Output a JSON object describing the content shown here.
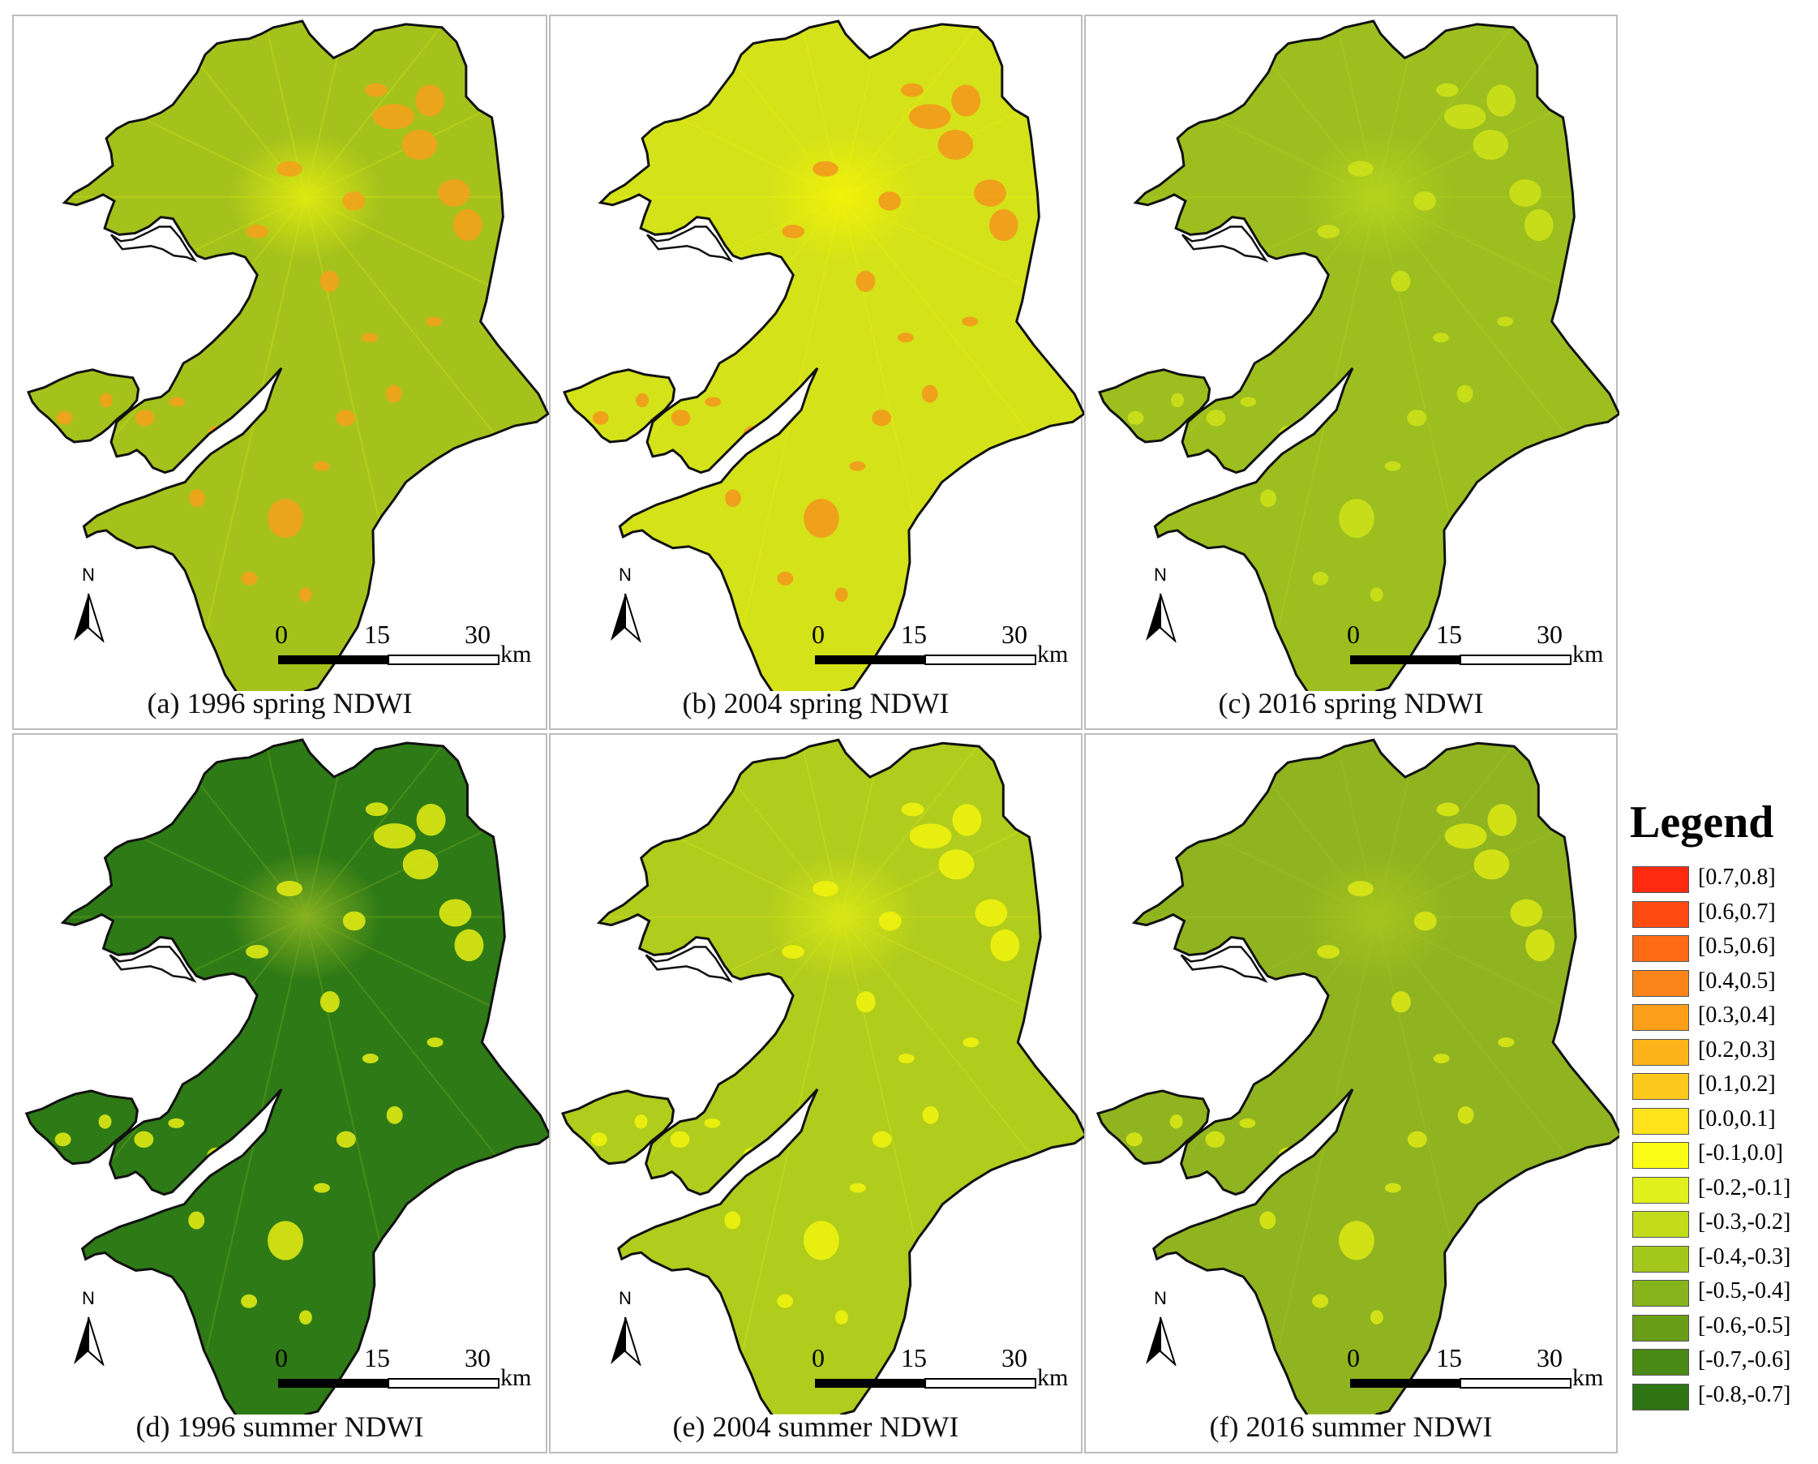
{
  "panels": [
    {
      "caption": "(a) 1996 spring NDWI",
      "base": "#a5c21c",
      "urban": "#dde812",
      "patch_color": "#f2a21c",
      "scale_ticks": [
        "0",
        "15",
        "30"
      ],
      "unit": "km",
      "north": "N"
    },
    {
      "caption": "(b) 2004 spring NDWI",
      "base": "#d4e21a",
      "urban": "#f1f109",
      "patch_color": "#f29a1c",
      "scale_ticks": [
        "0",
        "15",
        "30"
      ],
      "unit": "km",
      "north": "N"
    },
    {
      "caption": "(c) 2016 spring NDWI",
      "base": "#9cbf1f",
      "urban": "#b6d21c",
      "patch_color": "#cde01a",
      "scale_ticks": [
        "0",
        "15",
        "30"
      ],
      "unit": "km",
      "north": "N"
    },
    {
      "caption": "(d) 1996 summer NDWI",
      "base": "#2e7a16",
      "urban": "#86b120",
      "patch_color": "#dee814",
      "scale_ticks": [
        "0",
        "15",
        "30"
      ],
      "unit": "km",
      "north": "N"
    },
    {
      "caption": "(e) 2004 summer NDWI",
      "base": "#b0cc1d",
      "urban": "#d8e617",
      "patch_color": "#eef20e",
      "scale_ticks": [
        "0",
        "15",
        "30"
      ],
      "unit": "km",
      "north": "N"
    },
    {
      "caption": "(f) 2016 summer NDWI",
      "base": "#8fb420",
      "urban": "#a6c41e",
      "patch_color": "#d8e615",
      "scale_ticks": [
        "0",
        "15",
        "30"
      ],
      "unit": "km",
      "north": "N"
    }
  ],
  "legend": {
    "title": "Legend",
    "items": [
      {
        "label": "[0.7,0.8]",
        "color": "#ff2a10"
      },
      {
        "label": "[0.6,0.7]",
        "color": "#ff4a12"
      },
      {
        "label": "[0.5,0.6]",
        "color": "#ff6a14"
      },
      {
        "label": "[0.4,0.5]",
        "color": "#fb8518"
      },
      {
        "label": "[0.3,0.4]",
        "color": "#fca01a"
      },
      {
        "label": "[0.2,0.3]",
        "color": "#fdb41a"
      },
      {
        "label": "[0.1,0.2]",
        "color": "#fec91c"
      },
      {
        "label": "[0.0,0.1]",
        "color": "#fee21c"
      },
      {
        "label": "[-0.1,0.0]",
        "color": "#fafc16"
      },
      {
        "label": "[-0.2,-0.1]",
        "color": "#dff01c"
      },
      {
        "label": "[-0.3,-0.2]",
        "color": "#c2dc1c"
      },
      {
        "label": "[-0.4,-0.3]",
        "color": "#a3c81c"
      },
      {
        "label": "[-0.5,-0.4]",
        "color": "#86b41a"
      },
      {
        "label": "[-0.6,-0.5]",
        "color": "#6a9e18"
      },
      {
        "label": "[-0.7,-0.6]",
        "color": "#4c8a16"
      },
      {
        "label": "[-0.8,-0.7]",
        "color": "#2e7414"
      }
    ]
  }
}
